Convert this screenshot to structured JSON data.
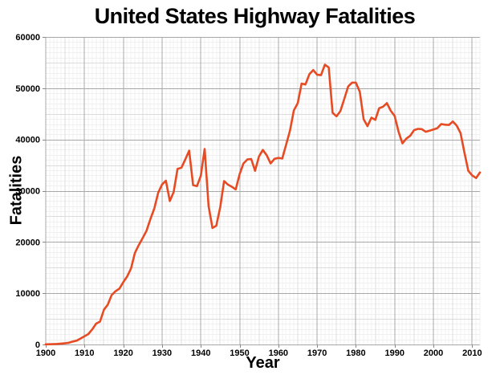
{
  "chart_data": {
    "type": "line",
    "title": "United States Highway Fatalities",
    "xlabel": "Year",
    "ylabel": "Fatalities",
    "xlim": [
      1900,
      2012
    ],
    "ylim": [
      0,
      60000
    ],
    "x_ticks": [
      1900,
      1910,
      1920,
      1930,
      1940,
      1950,
      1960,
      1970,
      1980,
      1990,
      2000,
      2010
    ],
    "y_ticks": [
      0,
      10000,
      20000,
      30000,
      40000,
      50000,
      60000
    ],
    "grid": {
      "x_minor_step": 1,
      "x_medium_step": 5,
      "x_major_step": 10,
      "y_minor_step": 1000,
      "y_medium_step": 5000,
      "y_major_step": 10000
    },
    "legend_position": "none",
    "series": [
      {
        "name": "Highway fatalities",
        "color": "#e64b23",
        "x": [
          1900,
          1901,
          1902,
          1903,
          1904,
          1905,
          1906,
          1907,
          1908,
          1909,
          1910,
          1911,
          1912,
          1913,
          1914,
          1915,
          1916,
          1917,
          1918,
          1919,
          1920,
          1921,
          1922,
          1923,
          1924,
          1925,
          1926,
          1927,
          1928,
          1929,
          1930,
          1931,
          1932,
          1933,
          1934,
          1935,
          1936,
          1937,
          1938,
          1939,
          1940,
          1941,
          1942,
          1943,
          1944,
          1945,
          1946,
          1947,
          1948,
          1949,
          1950,
          1951,
          1952,
          1953,
          1954,
          1955,
          1956,
          1957,
          1958,
          1959,
          1960,
          1961,
          1962,
          1963,
          1964,
          1965,
          1966,
          1967,
          1968,
          1969,
          1970,
          1971,
          1972,
          1973,
          1974,
          1975,
          1976,
          1977,
          1978,
          1979,
          1980,
          1981,
          1982,
          1983,
          1984,
          1985,
          1986,
          1987,
          1988,
          1989,
          1990,
          1991,
          1992,
          1993,
          1994,
          1995,
          1996,
          1997,
          1998,
          1999,
          2000,
          2001,
          2002,
          2003,
          2004,
          2005,
          2006,
          2007,
          2008,
          2009,
          2010,
          2011,
          2012
        ],
        "values": [
          36,
          54,
          79,
          117,
          172,
          252,
          338,
          581,
          751,
          1174,
          1599,
          2043,
          2968,
          4079,
          4468,
          6779,
          7766,
          9630,
          10390,
          10896,
          12155,
          13253,
          14859,
          17870,
          19400,
          20771,
          22194,
          24470,
          26557,
          29592,
          31204,
          31963,
          27979,
          29746,
          34240,
          34494,
          36126,
          37819,
          31083,
          30895,
          32914,
          38142,
          27007,
          22727,
          23165,
          26785,
          31874,
          31193,
          30775,
          30246,
          33186,
          35309,
          36088,
          36190,
          33890,
          36688,
          37965,
          36932,
          35331,
          36223,
          36399,
          36285,
          38980,
          41723,
          45645,
          47089,
          50894,
          50724,
          52725,
          53543,
          52627,
          52542,
          54589,
          54052,
          45196,
          44525,
          45523,
          47878,
          50331,
          51093,
          51091,
          49301,
          43945,
          42589,
          44257,
          43825,
          46087,
          46390,
          47087,
          45582,
          44599,
          41508,
          39250,
          40150,
          40716,
          41817,
          42065,
          42013,
          41501,
          41717,
          41945,
          42196,
          43005,
          42884,
          42836,
          43510,
          42708,
          41259,
          37423,
          33883,
          32999,
          32479,
          33561
        ]
      }
    ]
  },
  "colors": {
    "background": "#ffffff",
    "text": "#000000",
    "line": "#e64b23",
    "grid_minor": "#f0f0f0",
    "grid_medium": "#dcdcdc",
    "grid_major": "#a8a8a8",
    "tick_mark": "#888888"
  }
}
